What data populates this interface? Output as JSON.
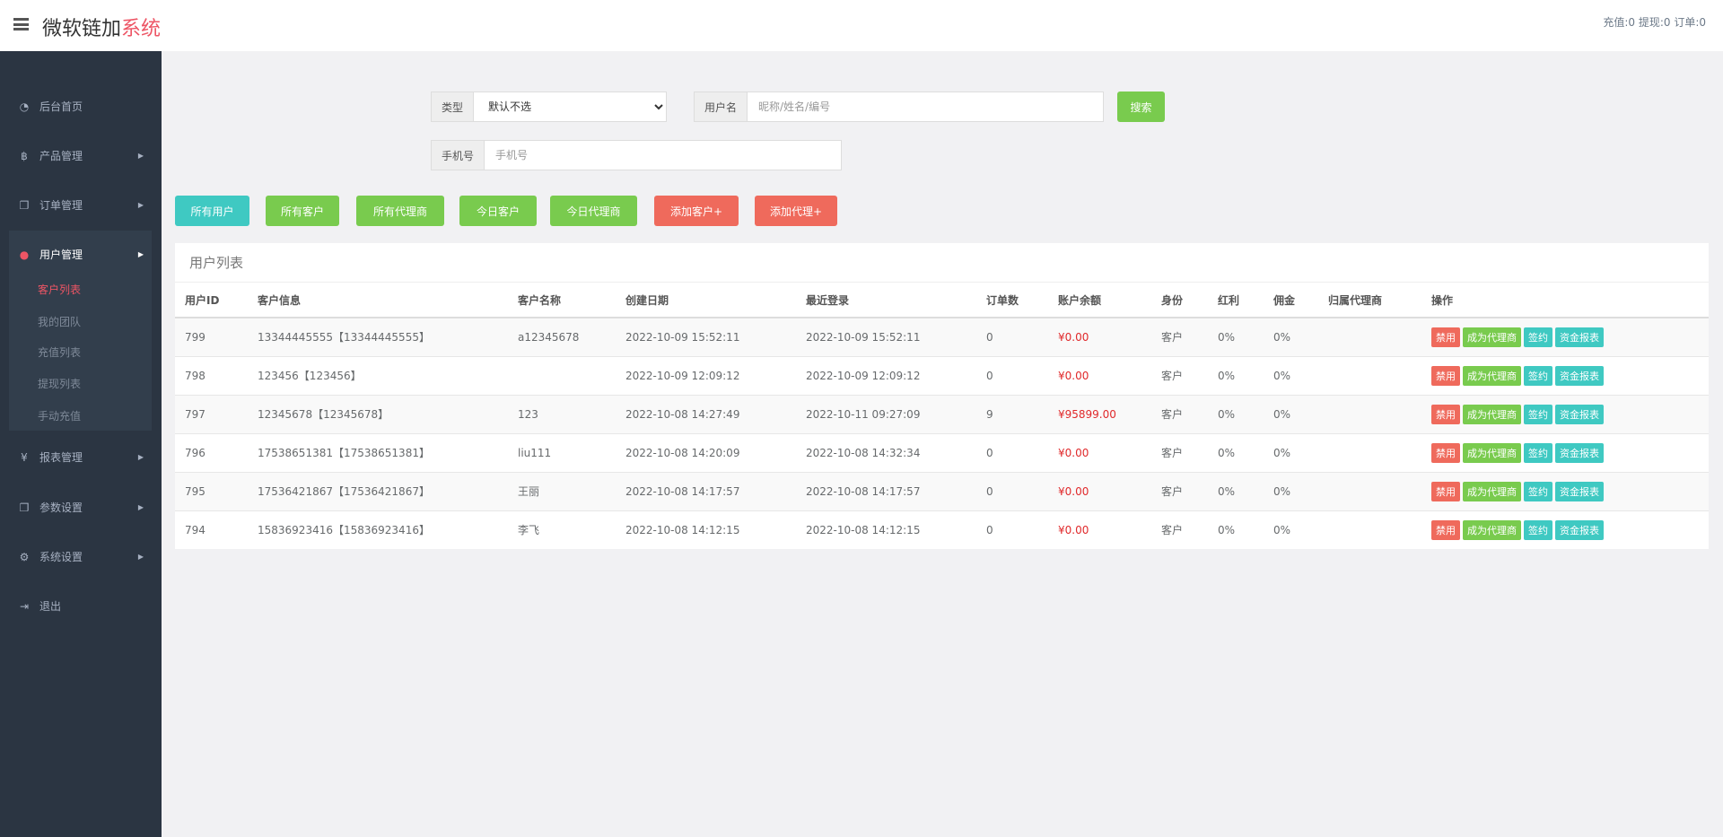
{
  "header": {
    "title_main": "微软链加",
    "title_accent": "系统",
    "stats": "充值:0 提现:0 订单:0"
  },
  "sidebar": {
    "items": [
      {
        "label": "后台首页",
        "icon": "dashboard-icon",
        "glyph": "◔"
      },
      {
        "label": "产品管理",
        "icon": "bitcoin-icon",
        "glyph": "฿"
      },
      {
        "label": "订单管理",
        "icon": "files-icon",
        "glyph": "❐"
      },
      {
        "label": "用户管理",
        "icon": "user-icon",
        "glyph": "●"
      },
      {
        "label": "报表管理",
        "icon": "yen-icon",
        "glyph": "¥"
      },
      {
        "label": "参数设置",
        "icon": "files-icon",
        "glyph": "❐"
      },
      {
        "label": "系统设置",
        "icon": "gears-icon",
        "glyph": "⚙"
      },
      {
        "label": "退出",
        "icon": "sign-out-icon",
        "glyph": "⇥"
      }
    ],
    "sub_items": [
      "客户列表",
      "我的团队",
      "充值列表",
      "提现列表",
      "手动充值"
    ]
  },
  "filters": {
    "type_label": "类型",
    "type_value": "默认不选",
    "username_label": "用户名",
    "username_placeholder": "昵称/姓名/编号",
    "search_label": "搜索",
    "phone_label": "手机号",
    "phone_placeholder": "手机号"
  },
  "quick_buttons": [
    "所有用户",
    "所有客户",
    "所有代理商",
    "今日客户",
    "今日代理商",
    "添加客户+",
    "添加代理+"
  ],
  "colors": {
    "cyan": "#3fc9c2",
    "green": "#79cb4e",
    "red": "#ef6a5c",
    "money": "#e0292b"
  },
  "table": {
    "title": "用户列表",
    "columns": [
      "用户ID",
      "客户信息",
      "客户名称",
      "创建日期",
      "最近登录",
      "订单数",
      "账户余额",
      "身份",
      "红利",
      "佣金",
      "归属代理商",
      "操作"
    ],
    "actions": [
      "禁用",
      "成为代理商",
      "签约",
      "资金报表"
    ],
    "rows": [
      [
        "799",
        "13344445555【13344445555】",
        "a12345678",
        "2022-10-09 15:52:11",
        "2022-10-09 15:52:11",
        "0",
        "¥0.00",
        "客户",
        "0%",
        "0%",
        ""
      ],
      [
        "798",
        "123456【123456】",
        "",
        "2022-10-09 12:09:12",
        "2022-10-09 12:09:12",
        "0",
        "¥0.00",
        "客户",
        "0%",
        "0%",
        ""
      ],
      [
        "797",
        "12345678【12345678】",
        "123",
        "2022-10-08 14:27:49",
        "2022-10-11 09:27:09",
        "9",
        "¥95899.00",
        "客户",
        "0%",
        "0%",
        ""
      ],
      [
        "796",
        "17538651381【17538651381】",
        "liu111",
        "2022-10-08 14:20:09",
        "2022-10-08 14:32:34",
        "0",
        "¥0.00",
        "客户",
        "0%",
        "0%",
        ""
      ],
      [
        "795",
        "17536421867【17536421867】",
        "王丽",
        "2022-10-08 14:17:57",
        "2022-10-08 14:17:57",
        "0",
        "¥0.00",
        "客户",
        "0%",
        "0%",
        ""
      ],
      [
        "794",
        "15836923416【15836923416】",
        "李飞",
        "2022-10-08 14:12:15",
        "2022-10-08 14:12:15",
        "0",
        "¥0.00",
        "客户",
        "0%",
        "0%",
        ""
      ]
    ]
  }
}
